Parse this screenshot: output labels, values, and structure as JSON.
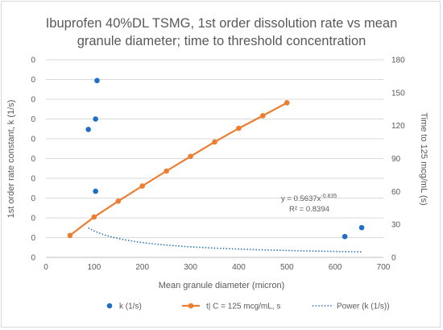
{
  "chart_data": {
    "type": "scatter",
    "title_lines": [
      "Ibuprofen 40%DL TSMG, 1st order dissolution rate vs mean",
      "granule diameter; time to threshold concentration"
    ],
    "xlabel": "Mean granule diameter (micron)",
    "ylabel_left": "1st order rate constant, k (1/s)",
    "ylabel_right": "Time to 125 mcg/mL (s)",
    "xlim": [
      0,
      700
    ],
    "x_ticks": [
      "0",
      "100",
      "200",
      "300",
      "400",
      "500",
      "600",
      "700"
    ],
    "y_left_ticks": [
      "0",
      "0",
      "0",
      "0",
      "0",
      "0",
      "0",
      "0",
      "0",
      "0",
      "0"
    ],
    "y_right_lim": [
      0,
      180
    ],
    "y_right_ticks": [
      "0",
      "30",
      "60",
      "90",
      "120",
      "150",
      "180"
    ],
    "grid": "horizontal",
    "legend_position": "bottom",
    "series": [
      {
        "name": "k (1/s)",
        "axis": "left",
        "kind": "scatter",
        "color": "#1f6fc5",
        "x": [
          88,
          103,
          103,
          106,
          620,
          655
        ],
        "y": [
          116.5,
          126.0,
          60.2,
          161.0,
          19.0,
          27.1
        ]
      },
      {
        "name": "t| C = 125 mcg/mL, s",
        "axis": "right",
        "kind": "line-markers",
        "color": "#ed7d31",
        "x": [
          50,
          100,
          150,
          200,
          250,
          300,
          350,
          400,
          450,
          500
        ],
        "y": [
          20.0,
          36.8,
          51.2,
          65.0,
          78.6,
          92.0,
          105.1,
          117.5,
          129.0,
          140.8
        ]
      },
      {
        "name": "Power (k (1/s))",
        "axis": "left",
        "kind": "trendline-power",
        "color": "#2e75b6",
        "x_range": [
          88,
          655
        ],
        "a": 0.5637,
        "b": -0.835
      }
    ],
    "annotation": {
      "equation": "y = 0.5637x",
      "exponent": "-0.835",
      "r2": "R² = 0.8394"
    }
  }
}
